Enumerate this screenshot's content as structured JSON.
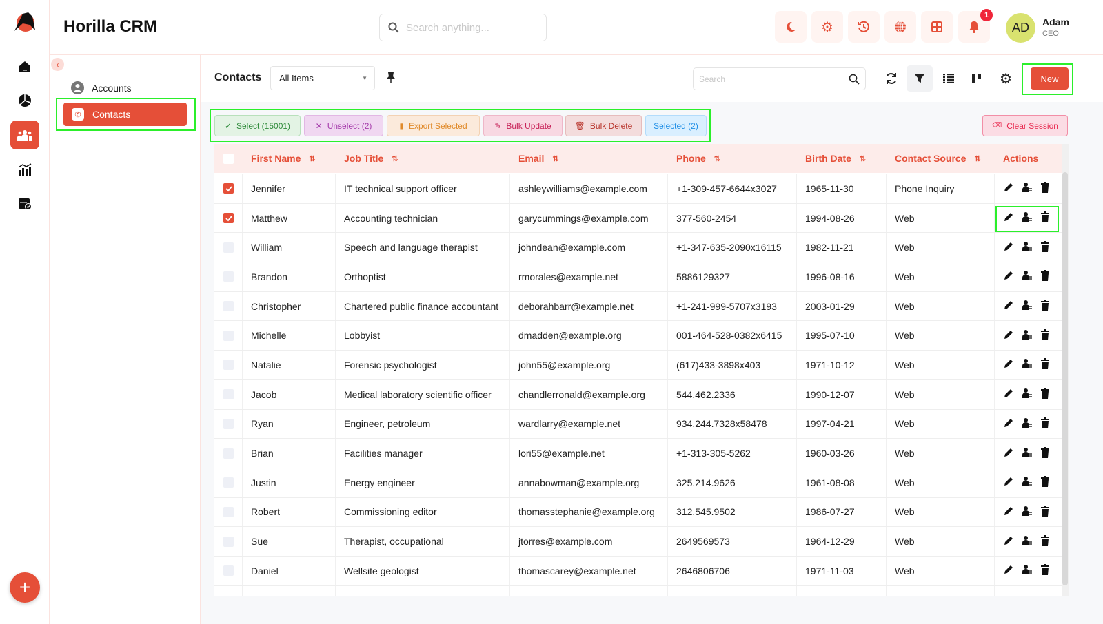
{
  "app": {
    "title": "Horilla CRM",
    "search_placeholder": "Search anything..."
  },
  "user": {
    "initials": "AD",
    "name": "Adam",
    "role": "CEO",
    "notifications": "1"
  },
  "header_icons": [
    "moon-icon",
    "gear-icon",
    "history-icon",
    "globe-icon",
    "grid-icon",
    "bell-icon"
  ],
  "sidebar": {
    "items": [
      {
        "label": "Accounts",
        "icon": "account-circle-icon"
      },
      {
        "label": "Contacts",
        "icon": "contact-phone-icon",
        "active": true
      }
    ]
  },
  "rail": [
    "home-icon",
    "pie-chart-icon",
    "people-icon",
    "analytics-icon",
    "calendar-check-icon"
  ],
  "toolbar": {
    "title": "Contacts",
    "view": "All Items",
    "search_placeholder": "Search",
    "new_label": "New"
  },
  "bulk": {
    "select": "Select (15001)",
    "unselect": "Unselect (2)",
    "export": "Export Selected",
    "update": "Bulk Update",
    "delete": "Bulk Delete",
    "selected": "Selected (2)",
    "clear": "Clear Session"
  },
  "colors": {
    "accent": "#e54f38",
    "header_bg": "#fdecea"
  },
  "table": {
    "columns": [
      "First Name",
      "Job Title",
      "Email",
      "Phone",
      "Birth Date",
      "Contact Source",
      "Actions"
    ],
    "rows": [
      {
        "checked": true,
        "first": "Jennifer",
        "job": "IT technical support officer",
        "email": "ashleywilliams@example.com",
        "phone": "+1-309-457-6644x3027",
        "birth": "1965-11-30",
        "source": "Phone Inquiry"
      },
      {
        "checked": true,
        "first": "Matthew",
        "job": "Accounting technician",
        "email": "garycummings@example.com",
        "phone": "377-560-2454",
        "birth": "1994-08-26",
        "source": "Web"
      },
      {
        "checked": false,
        "first": "William",
        "job": "Speech and language therapist",
        "email": "johndean@example.com",
        "phone": "+1-347-635-2090x16115",
        "birth": "1982-11-21",
        "source": "Web"
      },
      {
        "checked": false,
        "first": "Brandon",
        "job": "Orthoptist",
        "email": "rmorales@example.net",
        "phone": "5886129327",
        "birth": "1996-08-16",
        "source": "Web"
      },
      {
        "checked": false,
        "first": "Christopher",
        "job": "Chartered public finance accountant",
        "email": "deborahbarr@example.net",
        "phone": "+1-241-999-5707x3193",
        "birth": "2003-01-29",
        "source": "Web"
      },
      {
        "checked": false,
        "first": "Michelle",
        "job": "Lobbyist",
        "email": "dmadden@example.org",
        "phone": "001-464-528-0382x6415",
        "birth": "1995-07-10",
        "source": "Web"
      },
      {
        "checked": false,
        "first": "Natalie",
        "job": "Forensic psychologist",
        "email": "john55@example.org",
        "phone": "(617)433-3898x403",
        "birth": "1971-10-12",
        "source": "Web"
      },
      {
        "checked": false,
        "first": "Jacob",
        "job": "Medical laboratory scientific officer",
        "email": "chandlerronald@example.org",
        "phone": "544.462.2336",
        "birth": "1990-12-07",
        "source": "Web"
      },
      {
        "checked": false,
        "first": "Ryan",
        "job": "Engineer, petroleum",
        "email": "wardlarry@example.net",
        "phone": "934.244.7328x58478",
        "birth": "1997-04-21",
        "source": "Web"
      },
      {
        "checked": false,
        "first": "Brian",
        "job": "Facilities manager",
        "email": "lori55@example.net",
        "phone": "+1-313-305-5262",
        "birth": "1960-03-26",
        "source": "Web"
      },
      {
        "checked": false,
        "first": "Justin",
        "job": "Energy engineer",
        "email": "annabowman@example.org",
        "phone": "325.214.9626",
        "birth": "1961-08-08",
        "source": "Web"
      },
      {
        "checked": false,
        "first": "Robert",
        "job": "Commissioning editor",
        "email": "thomasstephanie@example.org",
        "phone": "312.545.9502",
        "birth": "1986-07-27",
        "source": "Web"
      },
      {
        "checked": false,
        "first": "Sue",
        "job": "Therapist, occupational",
        "email": "jtorres@example.com",
        "phone": "2649569573",
        "birth": "1964-12-29",
        "source": "Web"
      },
      {
        "checked": false,
        "first": "Daniel",
        "job": "Wellsite geologist",
        "email": "thomascarey@example.net",
        "phone": "2646806706",
        "birth": "1971-11-03",
        "source": "Web"
      }
    ]
  }
}
